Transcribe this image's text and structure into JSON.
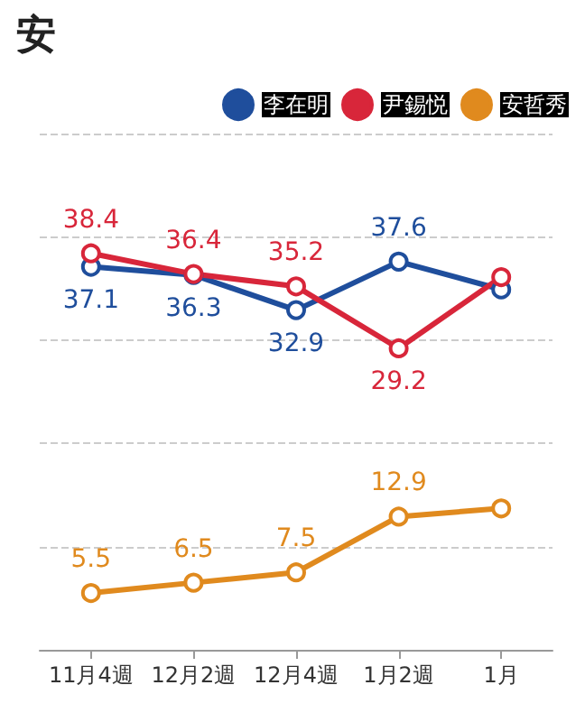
{
  "chart_data": {
    "type": "line",
    "title": "安",
    "categories": [
      "11月4週",
      "12月2週",
      "12月4週",
      "1月2週",
      "1月"
    ],
    "series": [
      {
        "name": "李在明",
        "color": "#1f4e9c",
        "values": [
          37.1,
          36.3,
          32.9,
          37.6,
          34.9
        ],
        "value_labels": [
          "37.1",
          "36.3",
          "32.9",
          "37.6",
          null
        ]
      },
      {
        "name": "尹錫悦",
        "color": "#d8263a",
        "values": [
          38.4,
          36.4,
          35.2,
          29.2,
          36.1
        ],
        "value_labels": [
          "38.4",
          "36.4",
          "35.2",
          "29.2",
          null
        ]
      },
      {
        "name": "安哲秀",
        "color": "#e08a1e",
        "values": [
          5.5,
          6.5,
          7.5,
          12.9,
          13.7
        ],
        "value_labels": [
          "5.5",
          "6.5",
          "7.5",
          "12.9",
          null
        ]
      }
    ],
    "yticks": [
      {
        "value": 10,
        "label": null
      },
      {
        "value": 20,
        "label": null
      },
      {
        "value": 30,
        "label": null
      },
      {
        "value": 40,
        "label": null
      },
      {
        "value": 50,
        "label": null
      }
    ],
    "tick_labels": "x",
    "grid": "y",
    "legend": "top right",
    "marker": "circle",
    "line_style": "solid"
  }
}
